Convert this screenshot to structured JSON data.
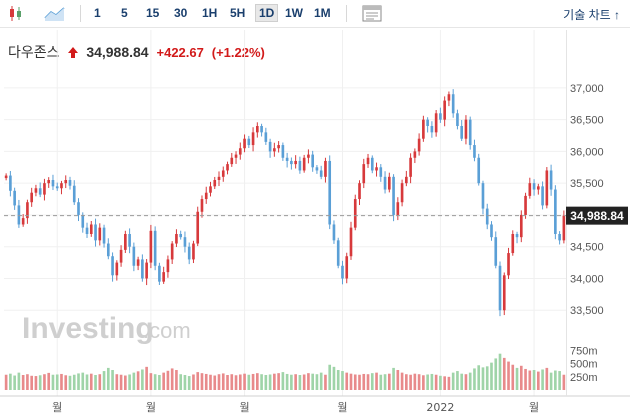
{
  "toolbar": {
    "timeframes": [
      "1",
      "5",
      "15",
      "30",
      "1H",
      "5H",
      "1D",
      "1W",
      "1M"
    ],
    "active_timeframe": "1D",
    "technical_chart_label": "기술 차트 ↑"
  },
  "header": {
    "name": "다우존스",
    "price": "34,988.84",
    "change": "+422.67",
    "change_pct": "(+1.22%)"
  },
  "watermark": "Investing",
  "watermark_suffix": ".com",
  "colors": {
    "up": "#d7393b",
    "down": "#5a9fd6",
    "vol_up": "#e88a8b",
    "vol_down": "#9fd4a8"
  },
  "chart_data": {
    "type": "candlestick",
    "ylim": [
      33000,
      37250
    ],
    "y_ticks": [
      "33,500",
      "34,000",
      "34,500",
      "35,000",
      "35,500",
      "36,000",
      "36,500",
      "37,000"
    ],
    "y_tick_values": [
      33500,
      34000,
      34500,
      35000,
      35500,
      36000,
      36500,
      37000
    ],
    "last_price": 34988.84,
    "last_price_label": "34,988.84",
    "x_ticks": [
      "월",
      "월",
      "월",
      "월",
      "2022",
      "월"
    ],
    "x_tick_index": [
      12,
      34,
      56,
      79,
      102,
      124
    ],
    "volume_ticks": [
      "750m",
      "500m",
      "250m"
    ],
    "volume_tick_values": [
      750,
      500,
      250
    ],
    "volume_ylim": [
      0,
      950
    ],
    "closes": [
      35620,
      35380,
      35150,
      34850,
      34950,
      35200,
      35350,
      35420,
      35320,
      35500,
      35550,
      35450,
      35420,
      35500,
      35550,
      35460,
      35200,
      35000,
      34800,
      34700,
      34850,
      34600,
      34800,
      34550,
      34350,
      34050,
      34250,
      34450,
      34700,
      34500,
      34200,
      34300,
      34000,
      34250,
      34750,
      34200,
      33950,
      34100,
      34300,
      34550,
      34700,
      34650,
      34500,
      34300,
      34550,
      35050,
      35250,
      35350,
      35450,
      35550,
      35600,
      35700,
      35800,
      35900,
      35950,
      36050,
      36200,
      36100,
      36300,
      36400,
      36300,
      36150,
      36000,
      36050,
      36100,
      35900,
      35850,
      35800,
      35850,
      35700,
      35900,
      35950,
      35750,
      35700,
      35600,
      35850,
      34850,
      34600,
      34200,
      34000,
      34350,
      34800,
      35250,
      35500,
      35800,
      35900,
      35700,
      35750,
      35600,
      35400,
      35600,
      35000,
      35200,
      35500,
      35600,
      35900,
      36000,
      36200,
      36500,
      36400,
      36300,
      36600,
      36500,
      36800,
      36900,
      36600,
      36400,
      36200,
      36500,
      36100,
      35900,
      35500,
      35100,
      34850,
      34650,
      34200,
      33500,
      34050,
      34400,
      34700,
      34650,
      35000,
      35300,
      35500,
      35400,
      35450,
      35150,
      35700,
      35400,
      34700,
      34600,
      34988
    ],
    "volumes": [
      290,
      310,
      275,
      330,
      285,
      300,
      270,
      265,
      280,
      300,
      325,
      290,
      295,
      305,
      280,
      270,
      290,
      315,
      330,
      295,
      310,
      285,
      300,
      360,
      420,
      380,
      300,
      290,
      275,
      295,
      330,
      355,
      390,
      440,
      320,
      300,
      285,
      330,
      365,
      410,
      380,
      300,
      285,
      265,
      295,
      340,
      320,
      305,
      290,
      275,
      300,
      315,
      285,
      300,
      280,
      295,
      310,
      290,
      305,
      320,
      300,
      285,
      295,
      310,
      320,
      340,
      305,
      290,
      300,
      285,
      295,
      320,
      310,
      300,
      330,
      290,
      480,
      440,
      380,
      360,
      330,
      310,
      295,
      290,
      305,
      300,
      320,
      330,
      290,
      300,
      310,
      420,
      380,
      330,
      300,
      290,
      310,
      300,
      280,
      295,
      305,
      290,
      270,
      260,
      250,
      330,
      360,
      310,
      300,
      330,
      410,
      470,
      430,
      450,
      520,
      600,
      690,
      610,
      540,
      480,
      420,
      460,
      400,
      370,
      380,
      350,
      390,
      420,
      330,
      370,
      360,
      290
    ]
  }
}
